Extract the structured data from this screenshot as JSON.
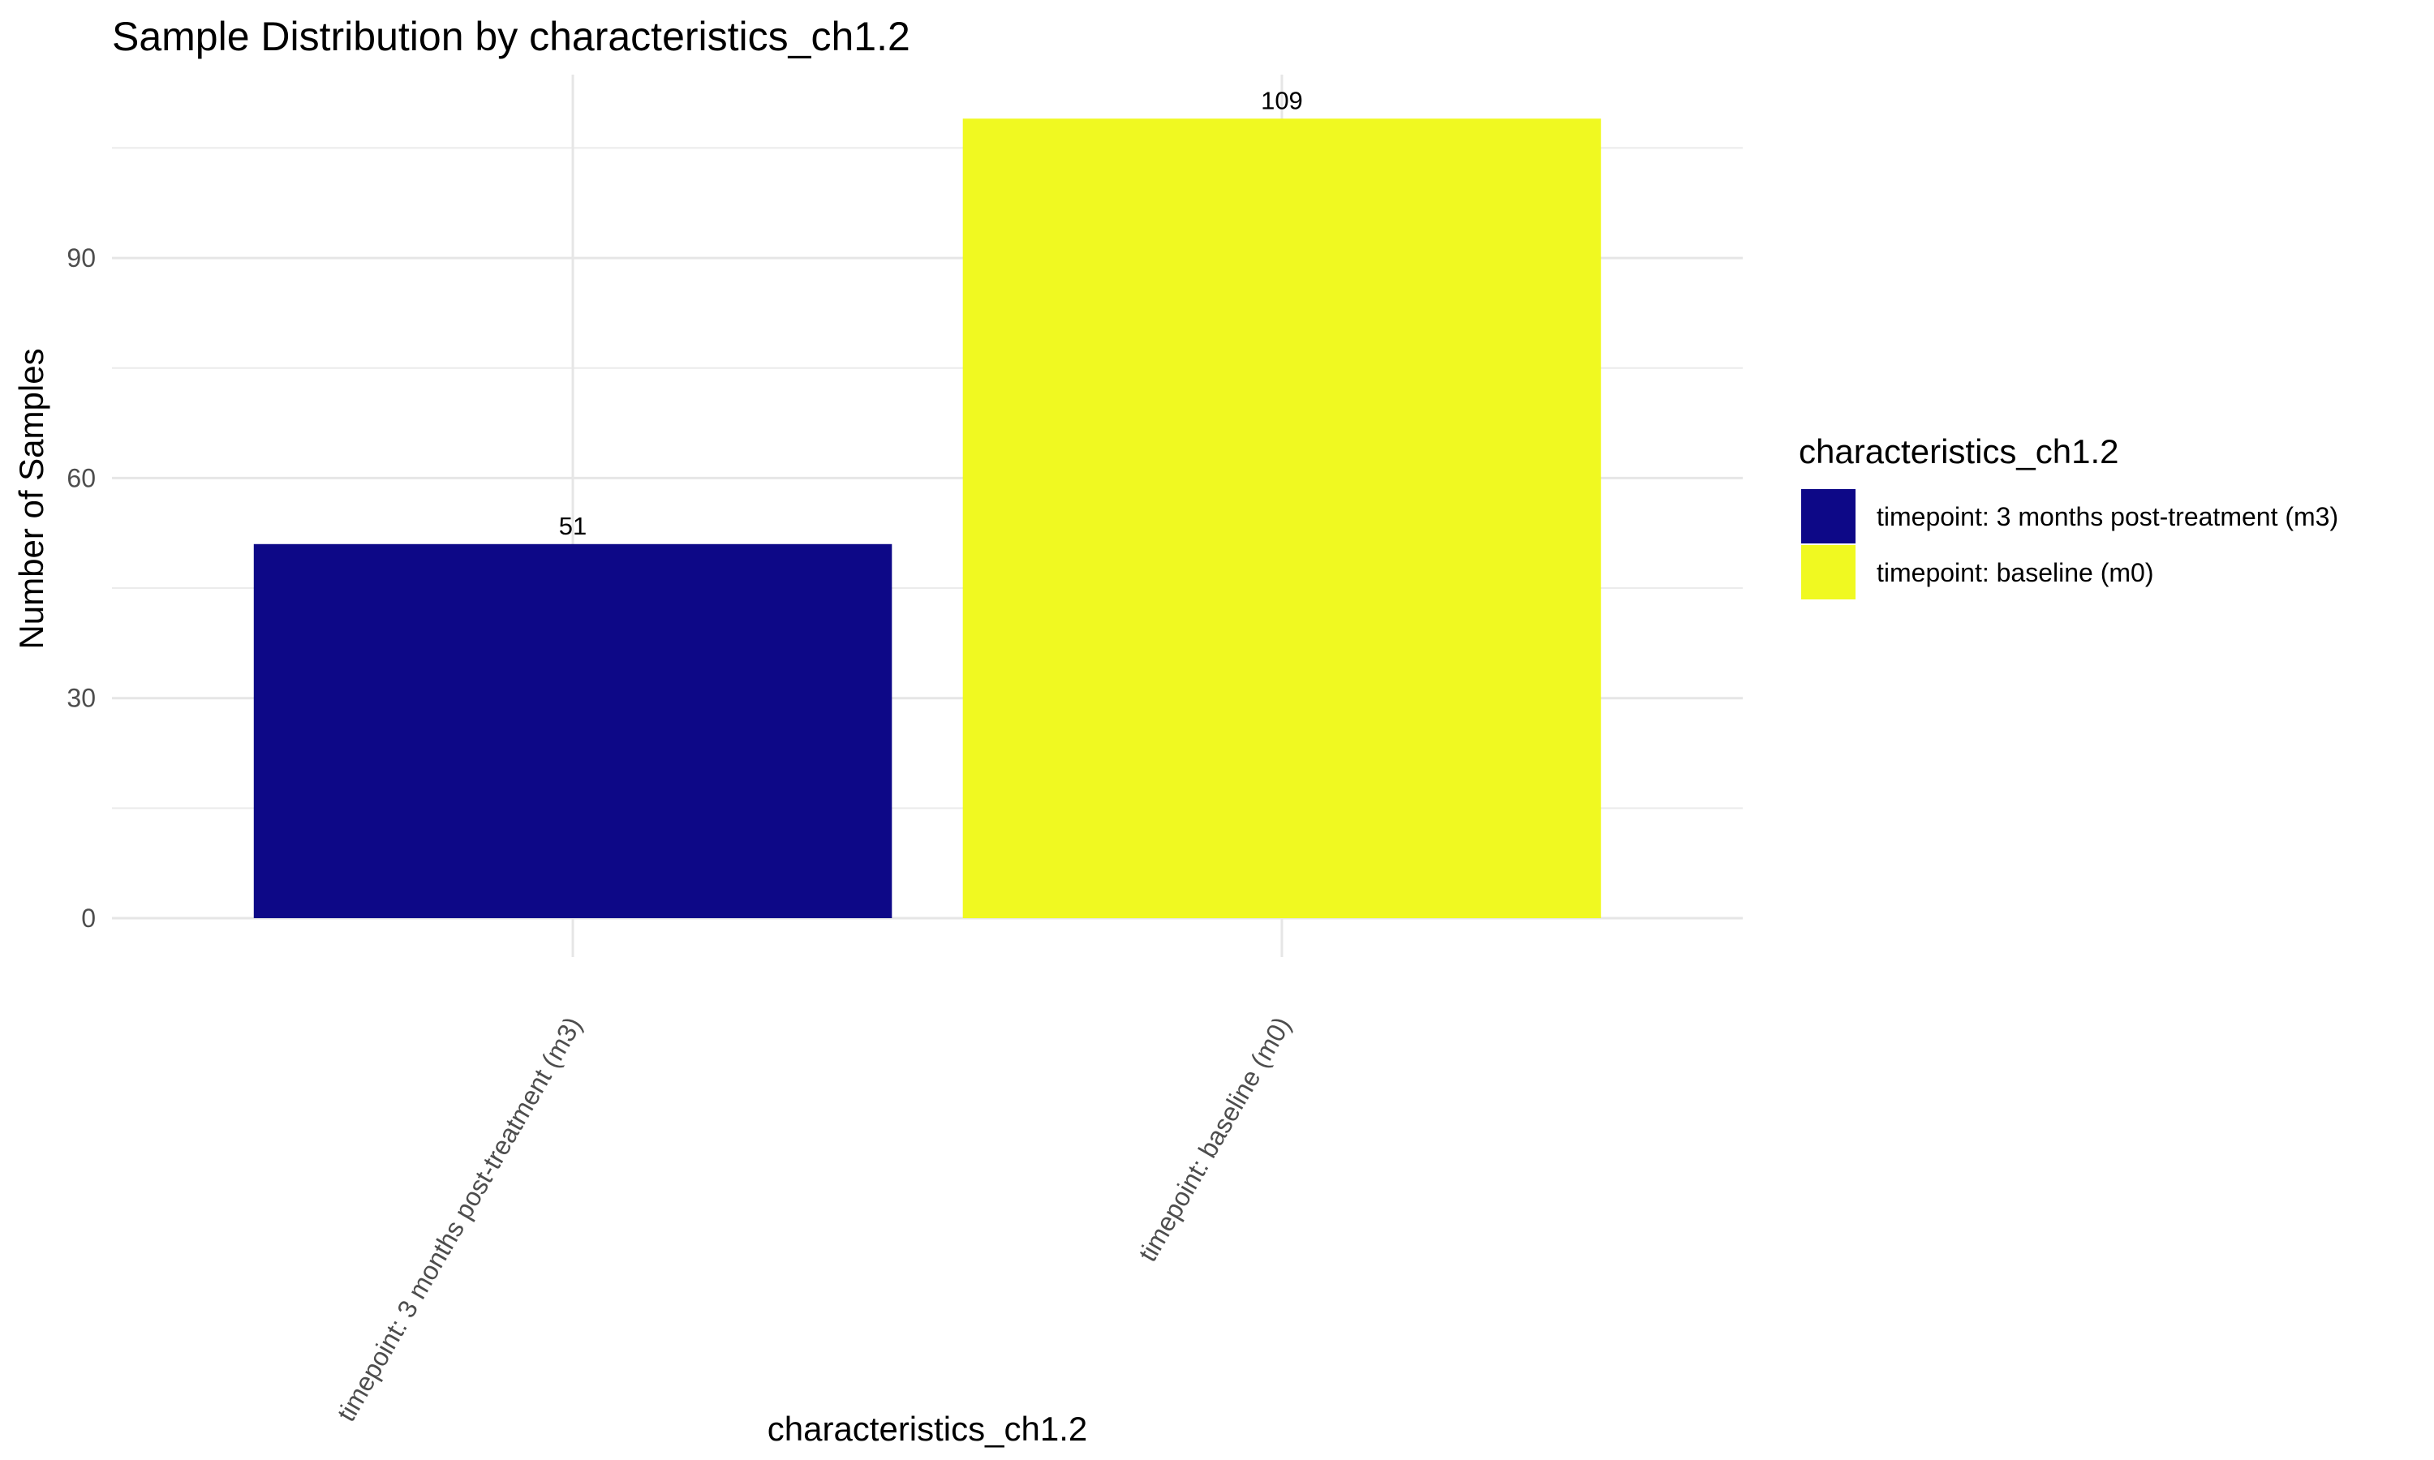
{
  "chart_data": {
    "type": "bar",
    "title": "Sample Distribution by characteristics_ch1.2",
    "xlabel": "characteristics_ch1.2",
    "ylabel": "Number of Samples",
    "categories": [
      "timepoint: 3 months post-treatment (m3)",
      "timepoint: baseline (m0)"
    ],
    "values": [
      51,
      109
    ],
    "colors": [
      "#0d0887",
      "#f0f921"
    ],
    "ylim": [
      0,
      115
    ],
    "yticks": [
      0,
      30,
      60,
      90
    ],
    "grid": true,
    "legend": {
      "title": "characteristics_ch1.2",
      "position": "right",
      "entries": [
        "timepoint: 3 months post-treatment (m3)",
        "timepoint: baseline (m0)"
      ]
    }
  }
}
